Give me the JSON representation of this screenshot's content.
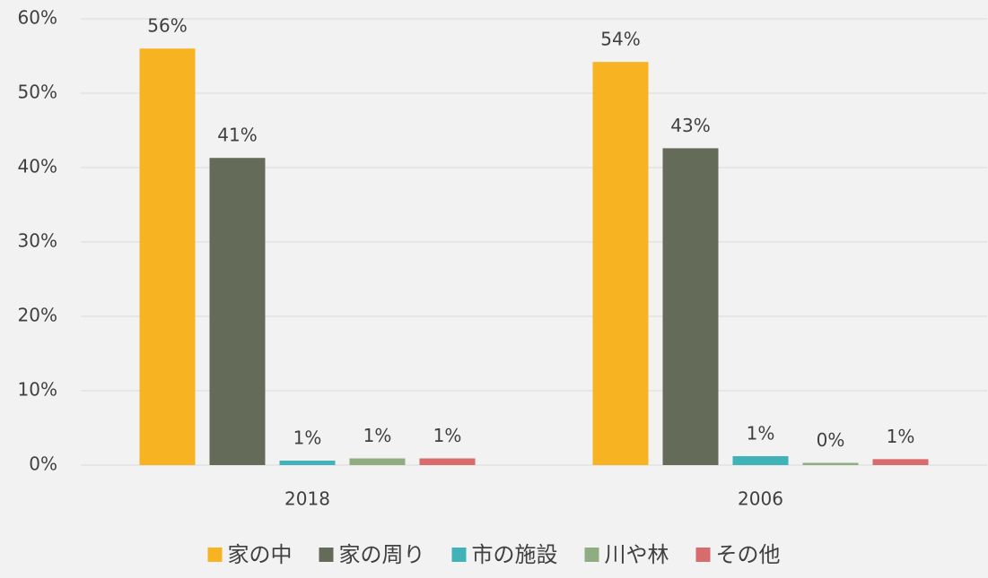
{
  "chart_data": {
    "type": "bar",
    "categories": [
      "2018",
      "2006"
    ],
    "series": [
      {
        "name": "家の中",
        "color": "#f7b321",
        "values": [
          56.0,
          54.2
        ],
        "value_labels": [
          "56%",
          "54%"
        ]
      },
      {
        "name": "家の周り",
        "color": "#646b58",
        "values": [
          41.3,
          42.6
        ],
        "value_labels": [
          "41%",
          "43%"
        ]
      },
      {
        "name": "市の施設",
        "color": "#40b3b8",
        "values": [
          0.6,
          1.2
        ],
        "value_labels": [
          "1%",
          "1%"
        ]
      },
      {
        "name": "川や林",
        "color": "#8fad80",
        "values": [
          0.9,
          0.3
        ],
        "value_labels": [
          "1%",
          "0%"
        ]
      },
      {
        "name": "その他",
        "color": "#d86b6b",
        "values": [
          0.9,
          0.8
        ],
        "value_labels": [
          "1%",
          "1%"
        ]
      }
    ],
    "ylim": [
      0,
      60
    ],
    "yticks": [
      {
        "value": 0,
        "label": "0%"
      },
      {
        "value": 10,
        "label": "10%"
      },
      {
        "value": 20,
        "label": "20%"
      },
      {
        "value": 30,
        "label": "30%"
      },
      {
        "value": 40,
        "label": "40%"
      },
      {
        "value": 50,
        "label": "50%"
      },
      {
        "value": 60,
        "label": "60%"
      }
    ],
    "grid": true,
    "legend": "bottom"
  }
}
